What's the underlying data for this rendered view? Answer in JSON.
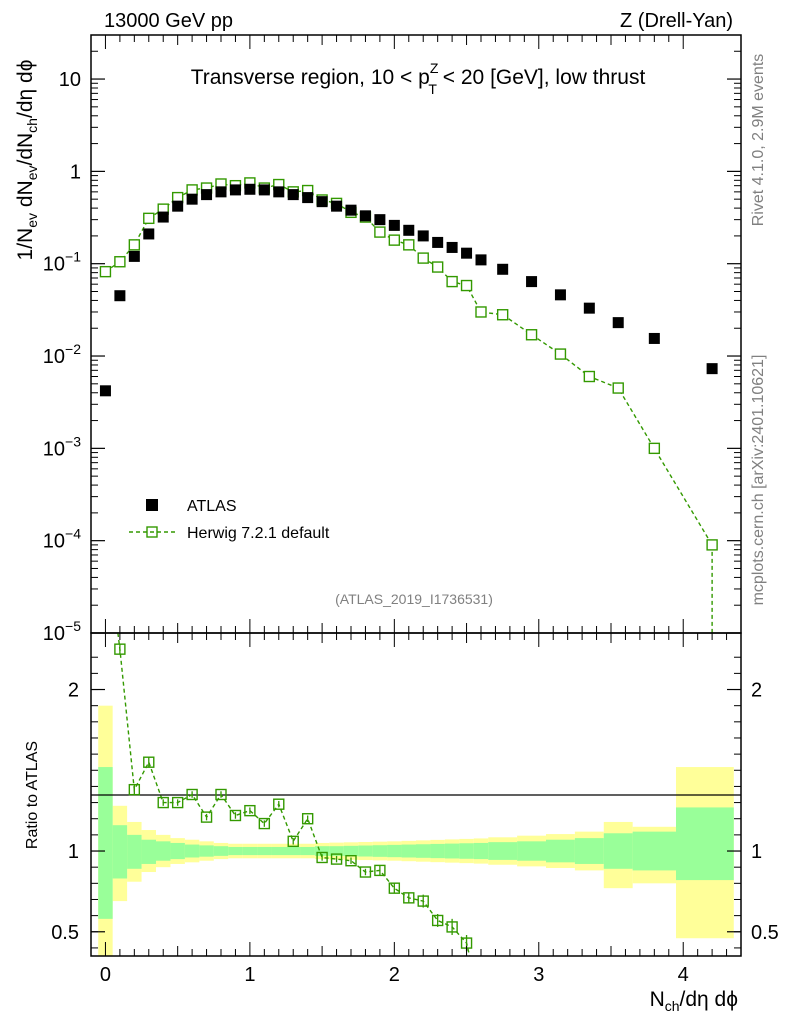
{
  "header": {
    "energy_label": "13000 GeV pp",
    "process_label": "Z (Drell-Yan)"
  },
  "side_labels": {
    "rivet": "Rivet 4.1.0,  2.9M events",
    "mcplots": "mcplots.cern.ch [arXiv:2401.10621]"
  },
  "colors": {
    "atlas": "#000000",
    "mc": "#339900",
    "band_inner": "#99ff99",
    "band_outer": "#ffff99"
  },
  "chart_data": [
    {
      "type": "scatter",
      "title": "Transverse region, 10 < p_T^Z < 20 [GeV], low thrust",
      "title_parts": {
        "pre": "Transverse region, 10 < p",
        "sup": "Z",
        "sub": "T",
        "post": " < 20 [GeV], low thrust"
      },
      "analysis_tag": "(ATLAS_2019_I1736531)",
      "ylabel": "1/N_ev dN_ev/dN_ch/dη dϕ",
      "yscale": "log",
      "ylim": [
        1e-05,
        30
      ],
      "xlim": [
        -0.1,
        4.4
      ],
      "y_ticks": [
        {
          "value": 10,
          "label": "10"
        },
        {
          "value": 1,
          "label": "1"
        },
        {
          "value": 0.1,
          "base": "10",
          "exp": "−1"
        },
        {
          "value": 0.01,
          "base": "10",
          "exp": "−2"
        },
        {
          "value": 0.001,
          "base": "10",
          "exp": "−3"
        },
        {
          "value": 0.0001,
          "base": "10",
          "exp": "−4"
        },
        {
          "value": 1e-05,
          "base": "10",
          "exp": "−5"
        }
      ],
      "legend": [
        {
          "label": "ATLAS",
          "marker": "filled-square"
        },
        {
          "label": "Herwig 7.2.1 default",
          "marker": "open-square-dashed"
        }
      ],
      "series": [
        {
          "name": "ATLAS",
          "x": [
            0.0,
            0.1,
            0.2,
            0.3,
            0.4,
            0.5,
            0.6,
            0.7,
            0.8,
            0.9,
            1.0,
            1.1,
            1.2,
            1.3,
            1.4,
            1.5,
            1.6,
            1.7,
            1.8,
            1.9,
            2.0,
            2.1,
            2.2,
            2.3,
            2.4,
            2.5,
            2.6,
            2.75,
            2.95,
            3.15,
            3.35,
            3.55,
            3.8,
            4.2
          ],
          "y": [
            0.0042,
            0.045,
            0.12,
            0.21,
            0.32,
            0.42,
            0.5,
            0.56,
            0.6,
            0.63,
            0.64,
            0.63,
            0.6,
            0.56,
            0.52,
            0.47,
            0.42,
            0.38,
            0.33,
            0.3,
            0.26,
            0.23,
            0.2,
            0.17,
            0.15,
            0.13,
            0.11,
            0.087,
            0.064,
            0.046,
            0.033,
            0.023,
            0.0155,
            0.0073
          ]
        },
        {
          "name": "Herwig 7.2.1 default",
          "x": [
            0.0,
            0.1,
            0.2,
            0.3,
            0.4,
            0.5,
            0.6,
            0.7,
            0.8,
            0.9,
            1.0,
            1.1,
            1.2,
            1.3,
            1.4,
            1.5,
            1.6,
            1.7,
            1.8,
            1.9,
            2.0,
            2.1,
            2.2,
            2.3,
            2.4,
            2.5,
            2.6,
            2.75,
            2.95,
            3.15,
            3.35,
            3.55,
            3.8,
            4.2
          ],
          "y": [
            0.082,
            0.105,
            0.16,
            0.31,
            0.39,
            0.52,
            0.63,
            0.66,
            0.73,
            0.7,
            0.75,
            0.66,
            0.72,
            0.6,
            0.62,
            0.49,
            0.45,
            0.36,
            0.32,
            0.22,
            0.18,
            0.16,
            0.115,
            0.092,
            0.064,
            0.058,
            0.03,
            0.028,
            0.017,
            0.0105,
            0.006,
            0.0045,
            0.001,
            9e-05
          ]
        }
      ]
    },
    {
      "type": "scatter",
      "title": "",
      "ylabel": "Ratio to ATLAS",
      "xlabel": "N_ch/dη dϕ",
      "xlabel_parts": {
        "main": "N",
        "sub": "ch",
        "post": "/dη dϕ"
      },
      "ylim": [
        0.35,
        2.35
      ],
      "xlim": [
        -0.1,
        4.4
      ],
      "x_ticks": [
        {
          "value": 0,
          "label": "0"
        },
        {
          "value": 1,
          "label": "1"
        },
        {
          "value": 2,
          "label": "2"
        },
        {
          "value": 3,
          "label": "3"
        },
        {
          "value": 4,
          "label": "4"
        }
      ],
      "y_ticks": [
        {
          "value": 2,
          "label": "2"
        },
        {
          "value": 1,
          "label": "1"
        },
        {
          "value": 0.5,
          "label": "0.5"
        }
      ],
      "bins": [
        {
          "lo": -0.05,
          "hi": 0.05,
          "inner": [
            0.58,
            1.52
          ],
          "outer": [
            0.3,
            1.9
          ]
        },
        {
          "lo": 0.05,
          "hi": 0.15,
          "inner": [
            0.83,
            1.16
          ],
          "outer": [
            0.69,
            1.28
          ]
        },
        {
          "lo": 0.15,
          "hi": 0.25,
          "inner": [
            0.89,
            1.1
          ],
          "outer": [
            0.81,
            1.18
          ]
        },
        {
          "lo": 0.25,
          "hi": 0.35,
          "inner": [
            0.92,
            1.07
          ],
          "outer": [
            0.87,
            1.13
          ]
        },
        {
          "lo": 0.35,
          "hi": 0.45,
          "inner": [
            0.94,
            1.06
          ],
          "outer": [
            0.9,
            1.1
          ]
        },
        {
          "lo": 0.45,
          "hi": 0.55,
          "inner": [
            0.95,
            1.05
          ],
          "outer": [
            0.92,
            1.08
          ]
        },
        {
          "lo": 0.55,
          "hi": 0.65,
          "inner": [
            0.96,
            1.04
          ],
          "outer": [
            0.93,
            1.07
          ]
        },
        {
          "lo": 0.65,
          "hi": 0.75,
          "inner": [
            0.965,
            1.035
          ],
          "outer": [
            0.94,
            1.06
          ]
        },
        {
          "lo": 0.75,
          "hi": 0.85,
          "inner": [
            0.97,
            1.03
          ],
          "outer": [
            0.95,
            1.05
          ]
        },
        {
          "lo": 0.85,
          "hi": 0.95,
          "inner": [
            0.975,
            1.025
          ],
          "outer": [
            0.955,
            1.045
          ]
        },
        {
          "lo": 0.95,
          "hi": 1.05,
          "inner": [
            0.975,
            1.025
          ],
          "outer": [
            0.955,
            1.045
          ]
        },
        {
          "lo": 1.05,
          "hi": 1.15,
          "inner": [
            0.975,
            1.025
          ],
          "outer": [
            0.955,
            1.045
          ]
        },
        {
          "lo": 1.15,
          "hi": 1.25,
          "inner": [
            0.975,
            1.025
          ],
          "outer": [
            0.955,
            1.045
          ]
        },
        {
          "lo": 1.25,
          "hi": 1.35,
          "inner": [
            0.975,
            1.025
          ],
          "outer": [
            0.955,
            1.045
          ]
        },
        {
          "lo": 1.35,
          "hi": 1.45,
          "inner": [
            0.975,
            1.025
          ],
          "outer": [
            0.955,
            1.045
          ]
        },
        {
          "lo": 1.45,
          "hi": 1.55,
          "inner": [
            0.97,
            1.03
          ],
          "outer": [
            0.95,
            1.05
          ]
        },
        {
          "lo": 1.55,
          "hi": 1.65,
          "inner": [
            0.97,
            1.03
          ],
          "outer": [
            0.948,
            1.052
          ]
        },
        {
          "lo": 1.65,
          "hi": 1.75,
          "inner": [
            0.968,
            1.032
          ],
          "outer": [
            0.946,
            1.054
          ]
        },
        {
          "lo": 1.75,
          "hi": 1.85,
          "inner": [
            0.966,
            1.034
          ],
          "outer": [
            0.944,
            1.056
          ]
        },
        {
          "lo": 1.85,
          "hi": 1.95,
          "inner": [
            0.964,
            1.036
          ],
          "outer": [
            0.942,
            1.058
          ]
        },
        {
          "lo": 1.95,
          "hi": 2.05,
          "inner": [
            0.962,
            1.038
          ],
          "outer": [
            0.94,
            1.06
          ]
        },
        {
          "lo": 2.05,
          "hi": 2.15,
          "inner": [
            0.96,
            1.04
          ],
          "outer": [
            0.937,
            1.063
          ]
        },
        {
          "lo": 2.15,
          "hi": 2.25,
          "inner": [
            0.958,
            1.042
          ],
          "outer": [
            0.934,
            1.066
          ]
        },
        {
          "lo": 2.25,
          "hi": 2.35,
          "inner": [
            0.956,
            1.044
          ],
          "outer": [
            0.931,
            1.069
          ]
        },
        {
          "lo": 2.35,
          "hi": 2.45,
          "inner": [
            0.954,
            1.046
          ],
          "outer": [
            0.928,
            1.072
          ]
        },
        {
          "lo": 2.45,
          "hi": 2.55,
          "inner": [
            0.952,
            1.048
          ],
          "outer": [
            0.925,
            1.075
          ]
        },
        {
          "lo": 2.55,
          "hi": 2.65,
          "inner": [
            0.95,
            1.05
          ],
          "outer": [
            0.922,
            1.078
          ]
        },
        {
          "lo": 2.65,
          "hi": 2.85,
          "inner": [
            0.945,
            1.055
          ],
          "outer": [
            0.915,
            1.085
          ]
        },
        {
          "lo": 2.85,
          "hi": 3.05,
          "inner": [
            0.94,
            1.06
          ],
          "outer": [
            0.905,
            1.095
          ]
        },
        {
          "lo": 3.05,
          "hi": 3.25,
          "inner": [
            0.93,
            1.07
          ],
          "outer": [
            0.895,
            1.105
          ]
        },
        {
          "lo": 3.25,
          "hi": 3.45,
          "inner": [
            0.92,
            1.08
          ],
          "outer": [
            0.88,
            1.12
          ]
        },
        {
          "lo": 3.45,
          "hi": 3.65,
          "inner": [
            0.89,
            1.11
          ],
          "outer": [
            0.77,
            1.18
          ]
        },
        {
          "lo": 3.65,
          "hi": 3.95,
          "inner": [
            0.88,
            1.12
          ],
          "outer": [
            0.8,
            1.15
          ]
        },
        {
          "lo": 3.95,
          "hi": 4.35,
          "inner": [
            0.82,
            1.27
          ],
          "outer": [
            0.46,
            1.52
          ]
        }
      ],
      "series": [
        {
          "name": "Herwig 7.2.1 default",
          "x": [
            0.1,
            0.2,
            0.3,
            0.4,
            0.5,
            0.6,
            0.7,
            0.8,
            0.9,
            1.0,
            1.1,
            1.2,
            1.3,
            1.4,
            1.5,
            1.6,
            1.7,
            1.8,
            1.9,
            2.0,
            2.1,
            2.2,
            2.3,
            2.4,
            2.5
          ],
          "y": [
            2.25,
            1.38,
            1.55,
            1.3,
            1.3,
            1.35,
            1.21,
            1.35,
            1.22,
            1.25,
            1.17,
            1.29,
            1.06,
            1.2,
            0.96,
            0.95,
            0.94,
            0.87,
            0.88,
            0.77,
            0.71,
            0.69,
            0.57,
            0.53,
            0.43
          ],
          "err": [
            0.03,
            0.03,
            0.03,
            0.02,
            0.02,
            0.02,
            0.02,
            0.02,
            0.02,
            0.02,
            0.02,
            0.02,
            0.02,
            0.02,
            0.02,
            0.02,
            0.02,
            0.02,
            0.03,
            0.03,
            0.03,
            0.04,
            0.04,
            0.05,
            0.05
          ]
        }
      ]
    }
  ]
}
